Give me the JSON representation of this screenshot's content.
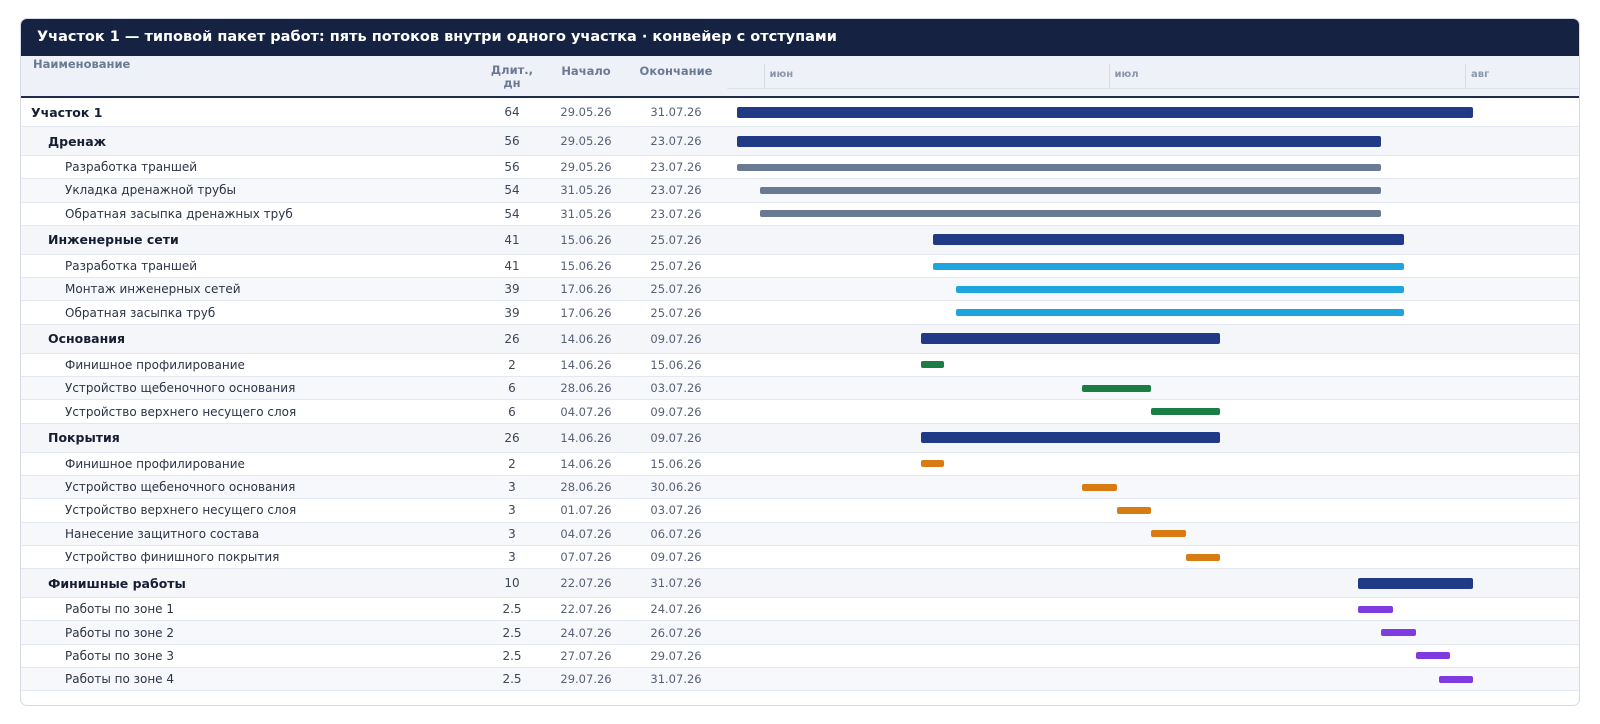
{
  "title": "Участок 1 — типовой пакет работ: пять потоков внутри одного участка · конвейер с отступами",
  "columns": {
    "name": "Наименование",
    "duration": "Длит., дн",
    "start": "Начало",
    "end": "Окончание"
  },
  "months": [
    {
      "label": "июн",
      "start": "2026-06-01"
    },
    {
      "label": "июл",
      "start": "2026-07-01"
    },
    {
      "label": "авг",
      "start": "2026-08-01"
    }
  ],
  "colors": {
    "summary": "#213a85",
    "drainage": "#6a7a92",
    "utilities": "#1ea5e0",
    "bases": "#1a7d43",
    "pavements": "#d97b13",
    "finishing": "#7d3be0"
  },
  "tasks": [
    {
      "name": "Участок 1",
      "level": 0,
      "duration": "64",
      "start": "29.05.26",
      "end": "31.07.26",
      "color": "#213a85"
    },
    {
      "name": "Дренаж",
      "level": 1,
      "duration": "56",
      "start": "29.05.26",
      "end": "23.07.26",
      "color": "#213a85"
    },
    {
      "name": "Разработка траншей",
      "level": 2,
      "duration": "56",
      "start": "29.05.26",
      "end": "23.07.26",
      "color": "#6a7a92"
    },
    {
      "name": "Укладка дренажной трубы",
      "level": 2,
      "duration": "54",
      "start": "31.05.26",
      "end": "23.07.26",
      "color": "#6a7a92"
    },
    {
      "name": "Обратная засыпка дренажных труб",
      "level": 2,
      "duration": "54",
      "start": "31.05.26",
      "end": "23.07.26",
      "color": "#6a7a92"
    },
    {
      "name": "Инженерные сети",
      "level": 1,
      "duration": "41",
      "start": "15.06.26",
      "end": "25.07.26",
      "color": "#213a85"
    },
    {
      "name": "Разработка траншей",
      "level": 2,
      "duration": "41",
      "start": "15.06.26",
      "end": "25.07.26",
      "color": "#1ea5e0"
    },
    {
      "name": "Монтаж инженерных сетей",
      "level": 2,
      "duration": "39",
      "start": "17.06.26",
      "end": "25.07.26",
      "color": "#1ea5e0"
    },
    {
      "name": "Обратная засыпка труб",
      "level": 2,
      "duration": "39",
      "start": "17.06.26",
      "end": "25.07.26",
      "color": "#1ea5e0"
    },
    {
      "name": "Основания",
      "level": 1,
      "duration": "26",
      "start": "14.06.26",
      "end": "09.07.26",
      "color": "#213a85"
    },
    {
      "name": "Финишное профилирование",
      "level": 2,
      "duration": "2",
      "start": "14.06.26",
      "end": "15.06.26",
      "color": "#1a7d43"
    },
    {
      "name": "Устройство щебеночного основания",
      "level": 2,
      "duration": "6",
      "start": "28.06.26",
      "end": "03.07.26",
      "color": "#1a7d43"
    },
    {
      "name": "Устройство верхнего несущего слоя",
      "level": 2,
      "duration": "6",
      "start": "04.07.26",
      "end": "09.07.26",
      "color": "#1a7d43"
    },
    {
      "name": "Покрытия",
      "level": 1,
      "duration": "26",
      "start": "14.06.26",
      "end": "09.07.26",
      "color": "#213a85"
    },
    {
      "name": "Финишное профилирование",
      "level": 2,
      "duration": "2",
      "start": "14.06.26",
      "end": "15.06.26",
      "color": "#d97b13"
    },
    {
      "name": "Устройство щебеночного основания",
      "level": 2,
      "duration": "3",
      "start": "28.06.26",
      "end": "30.06.26",
      "color": "#d97b13"
    },
    {
      "name": "Устройство верхнего несущего слоя",
      "level": 2,
      "duration": "3",
      "start": "01.07.26",
      "end": "03.07.26",
      "color": "#d97b13"
    },
    {
      "name": "Нанесение защитного состава",
      "level": 2,
      "duration": "3",
      "start": "04.07.26",
      "end": "06.07.26",
      "color": "#d97b13"
    },
    {
      "name": "Устройство финишного покрытия",
      "level": 2,
      "duration": "3",
      "start": "07.07.26",
      "end": "09.07.26",
      "color": "#d97b13"
    },
    {
      "name": "Финишные работы",
      "level": 1,
      "duration": "10",
      "start": "22.07.26",
      "end": "31.07.26",
      "color": "#213a85"
    },
    {
      "name": "Работы по зоне 1",
      "level": 2,
      "duration": "2.5",
      "start": "22.07.26",
      "end": "24.07.26",
      "color": "#7d3be0"
    },
    {
      "name": "Работы по зоне 2",
      "level": 2,
      "duration": "2.5",
      "start": "24.07.26",
      "end": "26.07.26",
      "color": "#7d3be0"
    },
    {
      "name": "Работы по зоне 3",
      "level": 2,
      "duration": "2.5",
      "start": "27.07.26",
      "end": "29.07.26",
      "color": "#7d3be0"
    },
    {
      "name": "Работы по зоне 4",
      "level": 2,
      "duration": "2.5",
      "start": "29.07.26",
      "end": "31.07.26",
      "color": "#7d3be0"
    }
  ]
}
